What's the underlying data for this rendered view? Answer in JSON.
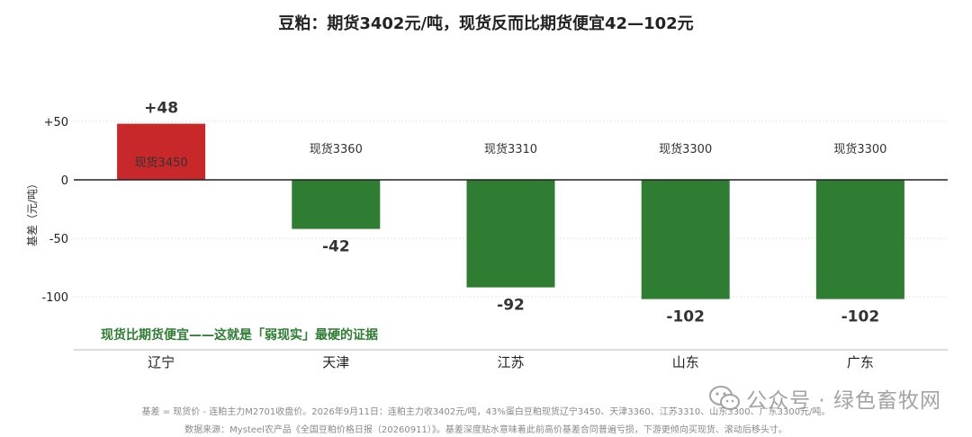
{
  "title": "豆粕：期货3402元/吨，现货反而比期货便宜42—102元",
  "annotation": "现货比期货便宜——这就是「弱现实」最硬的证据",
  "footnote_line1": "基差 = 现货价 - 连粕主力M2701收盘价。2026年9月11日：连粕主力收3402元/吨，43%蛋白豆粕现货辽宁3450、天津3360、江苏3310、山东3300、广东3300元/吨。",
  "footnote_line2": "数据来源：Mysteel农产品《全国豆粕价格日报（20260911）》。基差深度贴水意味着此前高价基差合同普遍亏损，下游更倾向买现货、滚动后移头寸。",
  "watermark": "公众号 · 绿色畜牧网",
  "colors": {
    "positive": "#c8282a",
    "negative": "#2e7d32",
    "annotation": "#2e7d32",
    "axis": "#222222",
    "grid": "#e6e6e6"
  },
  "chart_data": {
    "type": "bar",
    "ylabel": "基差（元/吨）",
    "ylim": [
      -108,
      52
    ],
    "yticks": [
      50,
      0,
      -50,
      -100
    ],
    "ytick_labels": [
      "+50",
      "0",
      "-50",
      "-100"
    ],
    "grid": true,
    "categories": [
      "辽宁",
      "天津",
      "江苏",
      "山东",
      "广东"
    ],
    "values": [
      48,
      -42,
      -92,
      -102,
      -102
    ],
    "value_labels": [
      "+48",
      "-42",
      "-92",
      "-102",
      "-102"
    ],
    "spot_labels": [
      "现货3450",
      "现货3360",
      "现货3310",
      "现货3300",
      "现货3300"
    ]
  }
}
